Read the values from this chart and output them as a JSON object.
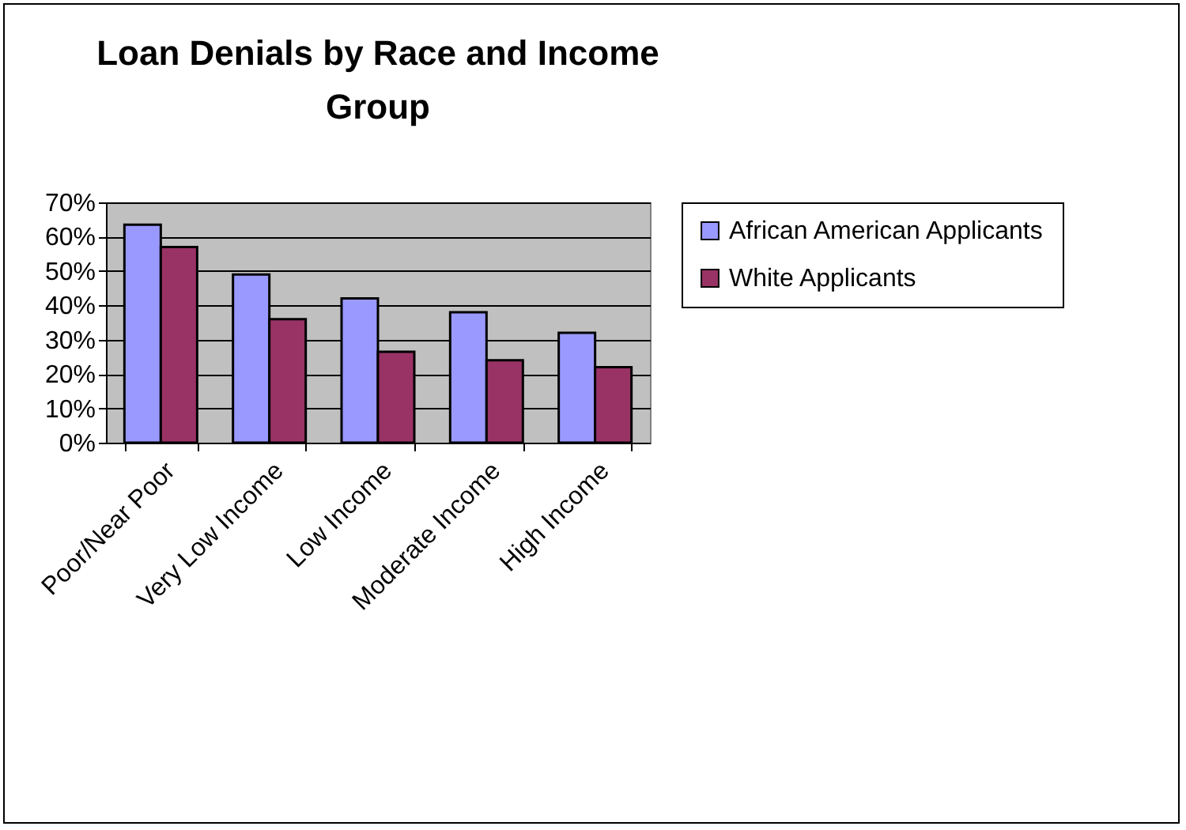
{
  "chart_data": {
    "type": "bar",
    "title": "Loan Denials by Race and Income Group",
    "categories": [
      "Poor/Near Poor",
      "Very Low Income",
      "Low Income",
      "Moderate Income",
      "High Income"
    ],
    "series": [
      {
        "name": "African American Applicants",
        "color": "#9999ff",
        "values": [
          63.5,
          49,
          42,
          38,
          32
        ]
      },
      {
        "name": "White Applicants",
        "color": "#993366",
        "values": [
          57,
          36,
          26.5,
          24,
          22
        ]
      }
    ],
    "ylim": [
      0,
      70
    ],
    "yticks": [
      {
        "value": 0,
        "label": "0%"
      },
      {
        "value": 10,
        "label": "10%"
      },
      {
        "value": 20,
        "label": "20%"
      },
      {
        "value": 30,
        "label": "30%"
      },
      {
        "value": 40,
        "label": "40%"
      },
      {
        "value": 50,
        "label": "50%"
      },
      {
        "value": 60,
        "label": "60%"
      },
      {
        "value": 70,
        "label": "70%"
      }
    ],
    "grid": "y",
    "legend": "right"
  }
}
